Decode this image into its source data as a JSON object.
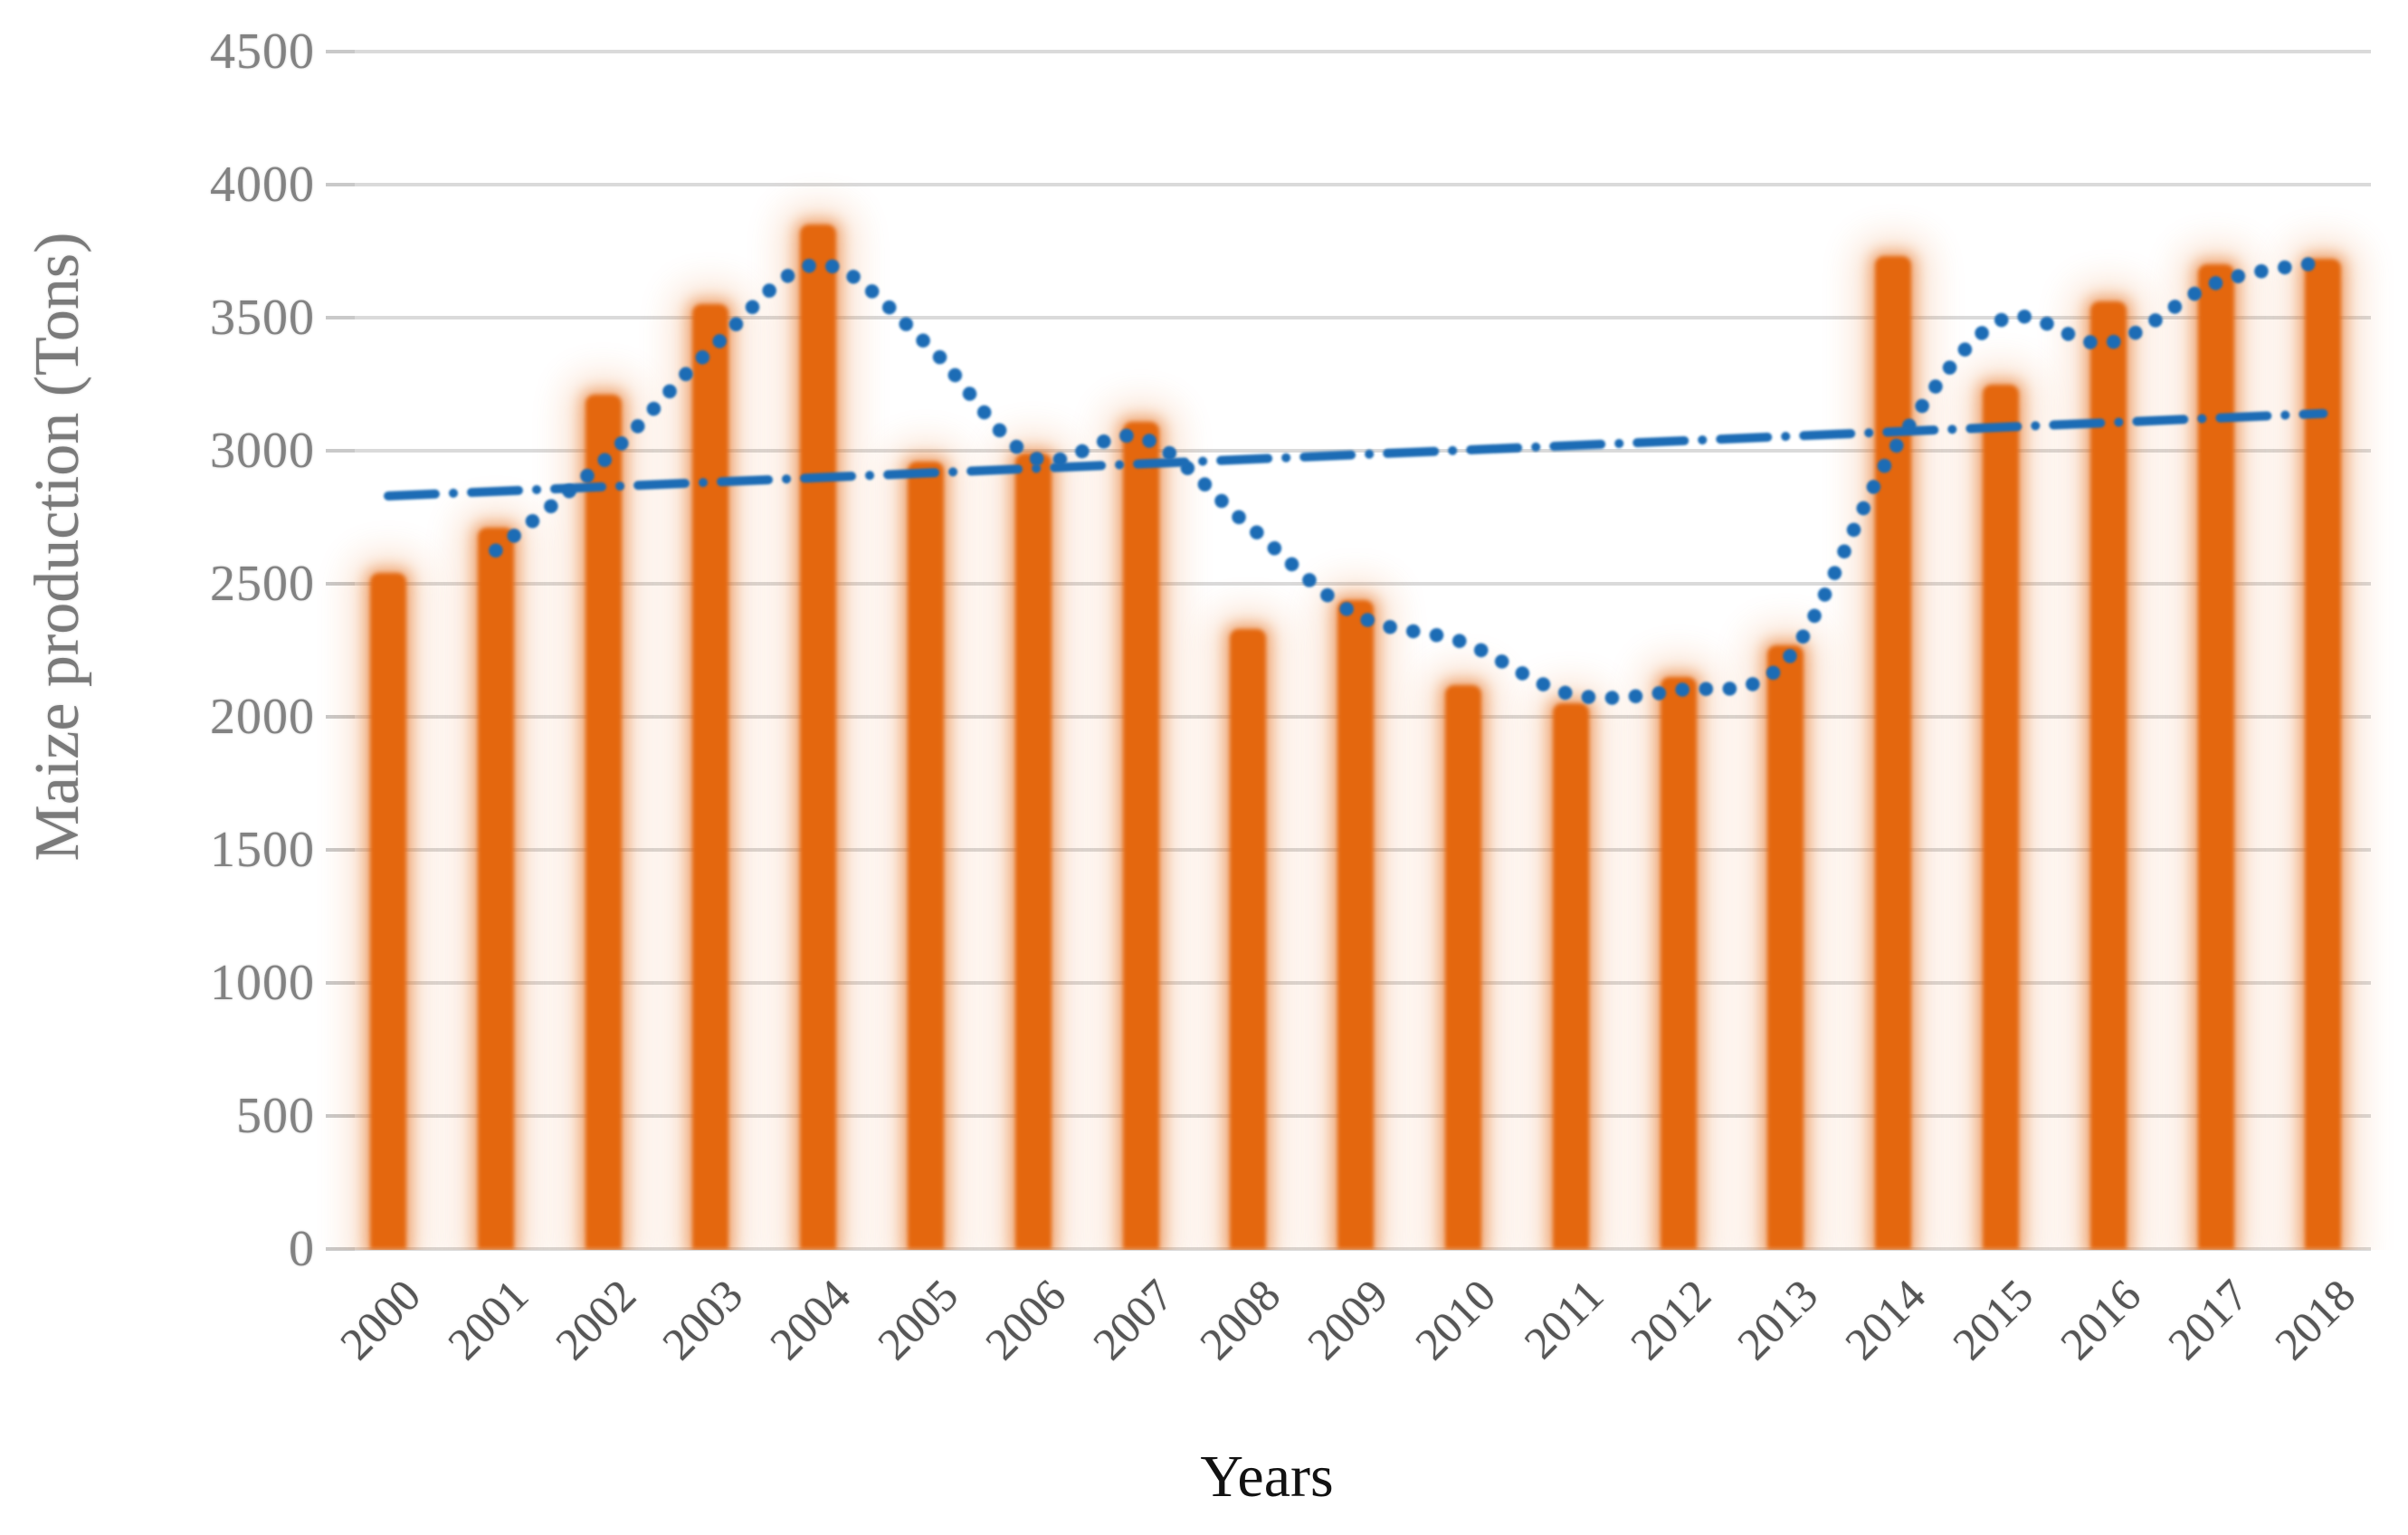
{
  "palette": {
    "background": "#FFFFFF",
    "bar_orange": "#E4670E",
    "bar_glow_orange": "rgba(228,103,14,0.45)",
    "bar_glow_outer": "rgba(230,110,25,0.20)",
    "line_blue": "#1B6CB5",
    "gridline_gray": "#DADADA",
    "tick_gray": "#C9C9C9",
    "y_label_gray": "#828282",
    "x_label_gray": "#565656",
    "axis_title_gray": "#7A7A7A",
    "x_title_black": "#121212"
  },
  "chart_data": {
    "type": "bar",
    "title": "",
    "xlabel": "Years",
    "ylabel": "Maize production (Tons)",
    "ylim": [
      0,
      4500
    ],
    "ytick_interval": 500,
    "ytick_labels": [
      "0",
      "500",
      "1000",
      "1500",
      "2000",
      "2500",
      "3000",
      "3500",
      "4000",
      "4500"
    ],
    "grid": true,
    "legend": "none",
    "categories": [
      "2000",
      "2001",
      "2002",
      "2003",
      "2004",
      "2005",
      "2006",
      "2007",
      "2008",
      "2009",
      "2010",
      "2011",
      "2012",
      "2013",
      "2014",
      "2015",
      "2016",
      "2017",
      "2018"
    ],
    "series": [
      {
        "id": "maize-production-bars",
        "type": "bar",
        "color": "#E4670E",
        "values": [
          2540,
          2710,
          3210,
          3550,
          3850,
          2960,
          2990,
          3110,
          2330,
          2440,
          2120,
          2050,
          2150,
          2270,
          3730,
          3250,
          3560,
          3700,
          3720
        ]
      },
      {
        "id": "dotted-moving-average-line",
        "type": "line",
        "line_style": "round-dotted",
        "color": "#1B6CB5",
        "start_category": "2001",
        "values": [
          2625,
          2960,
          3380,
          3700,
          3405,
          2975,
          3050,
          2720,
          2385,
          2280,
          2085,
          2100,
          2210,
          3000,
          3490,
          3405,
          3630,
          3710
        ]
      },
      {
        "id": "straight-trend-line",
        "type": "line",
        "line_style": "dash-dot",
        "color": "#1B6CB5",
        "x_categories": [
          "2000",
          "2018"
        ],
        "values": [
          2830,
          3140
        ]
      }
    ]
  }
}
